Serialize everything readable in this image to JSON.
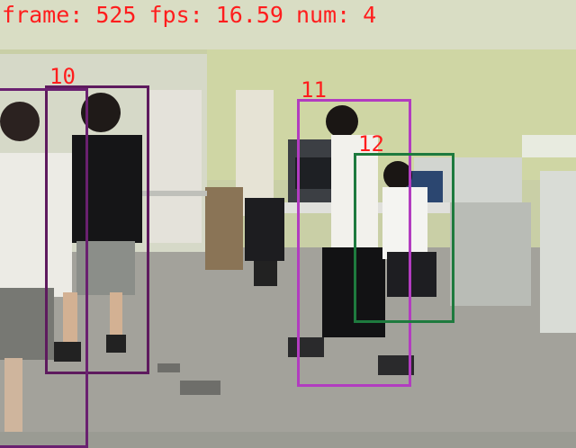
{
  "hud": {
    "frame_label": "frame:",
    "frame_value": "525",
    "fps_label": "fps:",
    "fps_value": "16.59",
    "num_label": "num:",
    "num_value": "4"
  },
  "tracks": [
    {
      "id": "10",
      "color": "#5e1a5e"
    },
    {
      "id": "11",
      "color": "#b23cc0"
    },
    {
      "id": "12",
      "color": "#1e7a3e"
    },
    {
      "id": "",
      "color": "#6a2070"
    }
  ]
}
